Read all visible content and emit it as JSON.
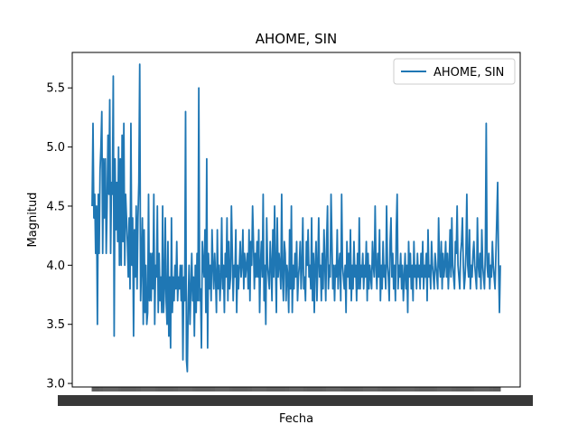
{
  "chart_data": {
    "type": "line",
    "title": "AHOME, SIN",
    "xlabel": "Fecha",
    "ylabel": "Magnitud",
    "ylim": [
      2.97,
      5.8
    ],
    "yticks": [
      3.0,
      3.5,
      4.0,
      4.5,
      5.0,
      5.5
    ],
    "ytick_labels": [
      "3.0",
      "3.5",
      "4.0",
      "4.5",
      "5.0",
      "5.5"
    ],
    "legend_position": "top-right",
    "grid": false,
    "series": [
      {
        "name": "AHOME, SIN",
        "color": "#1f77b4",
        "values": [
          4.5,
          5.2,
          4.4,
          4.6,
          4.1,
          4.5,
          3.5,
          4.6,
          4.1,
          4.8,
          5.0,
          5.3,
          4.1,
          4.9,
          4.4,
          4.9,
          4.1,
          4.5,
          5.1,
          4.6,
          5.4,
          4.1,
          4.7,
          4.6,
          5.6,
          3.4,
          4.9,
          4.3,
          4.7,
          4.2,
          5.0,
          4.0,
          4.9,
          4.0,
          5.1,
          4.2,
          5.2,
          4.0,
          4.6,
          4.4,
          4.2,
          3.9,
          4.4,
          3.8,
          5.2,
          4.0,
          4.4,
          3.4,
          4.3,
          3.9,
          4.5,
          3.8,
          4.4,
          4.7,
          5.7,
          3.7,
          4.0,
          4.4,
          3.5,
          4.3,
          3.6,
          4.0,
          3.5,
          3.6,
          4.6,
          3.7,
          4.1,
          3.7,
          4.1,
          3.8,
          4.6,
          3.5,
          4.0,
          3.9,
          4.5,
          3.6,
          4.1,
          3.7,
          3.9,
          3.6,
          4.5,
          3.6,
          3.8,
          4.4,
          3.7,
          3.5,
          4.2,
          3.4,
          3.9,
          3.3,
          4.4,
          3.6,
          3.9,
          3.7,
          4.0,
          3.8,
          4.2,
          3.7,
          3.9,
          3.8,
          4.0,
          3.7,
          4.0,
          3.2,
          3.9,
          3.7,
          5.3,
          3.2,
          3.1,
          3.7,
          4.0,
          3.5,
          3.8,
          4.1,
          3.7,
          3.9,
          3.4,
          4.0,
          3.6,
          4.1,
          3.7,
          5.5,
          3.7,
          3.8,
          3.3,
          4.2,
          4.0,
          3.9,
          4.3,
          3.6,
          4.9,
          3.3,
          4.1,
          3.8,
          4.0,
          3.7,
          4.3,
          4.0,
          3.8,
          4.1,
          3.9,
          3.6,
          4.3,
          3.8,
          4.0,
          3.7,
          3.9,
          4.4,
          3.8,
          4.0,
          3.6,
          4.1,
          3.9,
          4.4,
          3.7,
          4.2,
          3.8,
          3.9,
          4.5,
          4.1,
          3.7,
          4.0,
          3.9,
          4.3,
          3.6,
          4.0,
          3.8,
          4.0,
          4.2,
          3.9,
          4.0,
          4.3,
          3.8,
          4.1,
          3.9,
          4.0,
          4.1,
          3.8,
          4.3,
          3.7,
          4.2,
          4.0,
          4.5,
          4.2,
          3.8,
          4.1,
          3.9,
          4.2,
          3.9,
          4.3,
          3.6,
          4.0,
          4.2,
          3.9,
          4.6,
          3.7,
          4.0,
          3.5,
          4.4,
          4.0,
          3.9,
          3.8,
          4.2,
          4.0,
          3.7,
          4.3,
          3.9,
          4.5,
          4.0,
          3.6,
          4.4,
          3.9,
          4.1,
          4.0,
          3.8,
          4.6,
          3.9,
          3.7,
          4.2,
          4.1,
          3.7,
          4.0,
          3.9,
          3.6,
          4.3,
          3.8,
          4.5,
          3.6,
          4.0,
          3.8,
          4.1,
          3.9,
          4.2,
          3.7,
          3.9,
          4.0,
          4.2,
          3.8,
          4.0,
          4.4,
          3.8,
          3.9,
          3.7,
          4.2,
          4.0,
          4.3,
          3.9,
          4.0,
          3.8,
          4.4,
          3.7,
          4.1,
          3.6,
          4.0,
          4.2,
          3.7,
          4.0,
          4.4,
          3.9,
          4.0,
          3.7,
          4.1,
          3.8,
          4.3,
          4.0,
          3.7,
          4.2,
          4.5,
          3.8,
          4.0,
          3.9,
          4.6,
          4.2,
          3.8,
          4.0,
          3.7,
          4.0,
          3.9,
          4.3,
          3.8,
          4.0,
          4.1,
          3.7,
          4.6,
          4.0,
          3.9,
          3.8,
          4.0,
          3.6,
          4.2,
          3.9,
          4.1,
          3.8,
          4.3,
          3.7,
          4.0,
          3.8,
          4.2,
          3.9,
          4.0,
          3.7,
          4.1,
          3.8,
          4.4,
          3.8,
          4.0,
          3.9,
          4.1,
          3.8,
          4.0,
          3.9,
          4.2,
          3.7,
          4.1,
          3.8,
          4.0,
          3.9,
          3.8,
          4.2,
          4.0,
          3.9,
          4.5,
          4.0,
          3.8,
          4.1,
          3.9,
          4.3,
          3.7,
          4.0,
          3.8,
          4.2,
          3.9,
          4.0,
          3.8,
          4.5,
          4.0,
          3.9,
          3.7,
          4.2,
          4.4,
          3.9,
          4.1,
          3.8,
          4.0,
          3.7,
          4.3,
          4.6,
          3.8,
          4.0,
          3.9,
          4.1,
          3.8,
          4.0,
          3.7,
          3.9,
          4.1,
          3.8,
          4.0,
          3.6,
          4.2,
          3.9,
          4.1,
          3.8,
          4.0,
          3.7,
          4.2,
          3.9,
          4.0,
          3.8,
          4.1,
          3.9,
          4.0,
          3.8,
          4.1,
          3.9,
          4.2,
          3.8,
          4.0,
          3.9,
          4.1,
          3.7,
          4.3,
          3.9,
          4.0,
          3.8,
          4.2,
          4.0,
          3.9,
          3.8,
          4.1,
          4.0,
          3.9,
          3.8,
          4.4,
          4.0,
          3.9,
          4.2,
          3.8,
          4.1,
          3.9,
          4.0,
          4.2,
          3.9,
          4.1,
          3.8,
          4.0,
          4.3,
          3.9,
          4.4,
          4.0,
          3.9,
          3.8,
          4.2,
          4.1,
          4.5,
          4.0,
          3.9,
          3.8,
          4.1,
          4.2,
          4.4,
          4.0,
          3.8,
          3.9,
          4.1,
          4.6,
          4.0,
          3.9,
          4.3,
          3.8,
          4.0,
          3.9,
          4.1,
          4.2,
          4.0,
          3.9,
          3.8,
          4.4,
          4.0,
          3.9,
          4.1,
          3.8,
          4.3,
          4.0,
          3.9,
          3.8,
          4.1,
          5.2,
          4.0,
          3.9,
          4.1,
          3.8,
          4.0,
          3.9,
          4.2,
          4.0,
          3.9,
          3.8,
          4.1,
          4.4,
          4.7,
          4.0,
          3.6,
          4.0
        ]
      }
    ]
  }
}
